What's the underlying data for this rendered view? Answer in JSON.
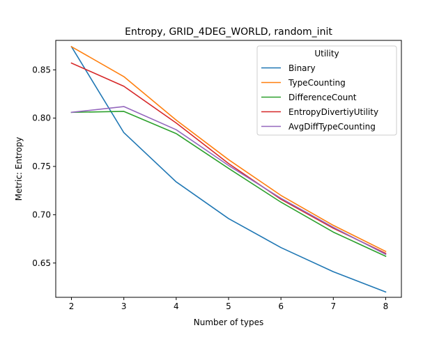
{
  "chart_data": {
    "type": "line",
    "title": "Entropy, GRID_4DEG_WORLD, random_init",
    "xlabel": "Number of types",
    "ylabel": "Metric: Entropy",
    "x": [
      2,
      3,
      4,
      5,
      6,
      7,
      8
    ],
    "xlim": [
      1.7,
      8.3
    ],
    "ylim": [
      0.6145,
      0.8805
    ],
    "xticks": [
      2,
      3,
      4,
      5,
      6,
      7,
      8
    ],
    "yticks": [
      0.65,
      0.7,
      0.75,
      0.8,
      0.85
    ],
    "ytick_labels": [
      "0.65",
      "0.70",
      "0.75",
      "0.80",
      "0.85"
    ],
    "grid": false,
    "legend": {
      "title": "Utility",
      "placement": "top-right"
    },
    "series": [
      {
        "name": "Binary",
        "color": "#1f77b4",
        "values": [
          0.874,
          0.785,
          0.734,
          0.696,
          0.666,
          0.641,
          0.62
        ]
      },
      {
        "name": "TypeCounting",
        "color": "#ff7f0e",
        "values": [
          0.874,
          0.843,
          0.798,
          0.757,
          0.72,
          0.689,
          0.662
        ]
      },
      {
        "name": "DifferenceCount",
        "color": "#2ca02c",
        "values": [
          0.806,
          0.807,
          0.784,
          0.748,
          0.713,
          0.682,
          0.657
        ]
      },
      {
        "name": "EntropyDivertiyUtility",
        "color": "#d62728",
        "values": [
          0.857,
          0.833,
          0.795,
          0.753,
          0.716,
          0.686,
          0.66
        ]
      },
      {
        "name": "AvgDiffTypeCounting",
        "color": "#9467bd",
        "values": [
          0.806,
          0.812,
          0.788,
          0.751,
          0.717,
          0.687,
          0.659
        ]
      }
    ]
  }
}
